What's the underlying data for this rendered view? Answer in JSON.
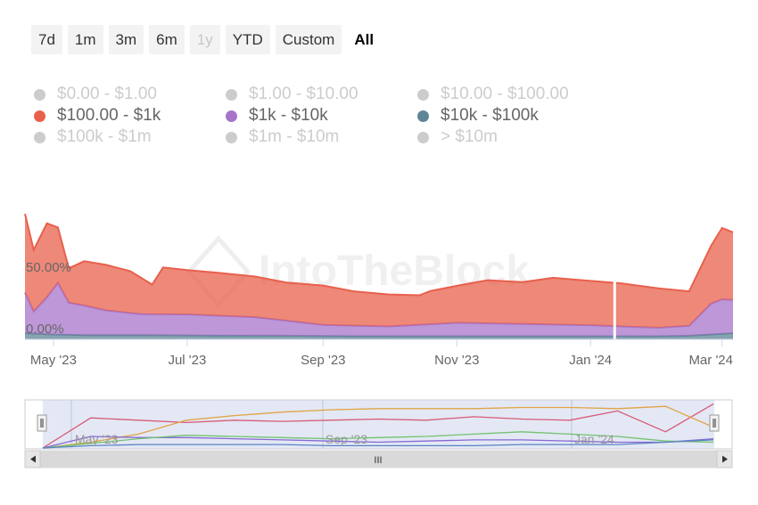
{
  "range_selector": {
    "buttons": [
      {
        "label": "7d",
        "state": "normal"
      },
      {
        "label": "1m",
        "state": "normal"
      },
      {
        "label": "3m",
        "state": "normal"
      },
      {
        "label": "6m",
        "state": "normal"
      },
      {
        "label": "1y",
        "state": "disabled"
      },
      {
        "label": "YTD",
        "state": "normal"
      },
      {
        "label": "Custom",
        "state": "normal"
      },
      {
        "label": "All",
        "state": "selected"
      }
    ]
  },
  "watermark": "IntoTheBlock",
  "colors": {
    "series_100_1k": "#e8604c",
    "series_1k_10k": "#a774c9",
    "series_10k_100k": "#5f8597",
    "hidden_series": "#cccccc",
    "navigator_fill": "#ccd6eb"
  },
  "chart_data": {
    "type": "area",
    "stacking": "normal",
    "legend": [
      {
        "name": "$0.00 - $1.00",
        "visible": false,
        "color": "#cccccc"
      },
      {
        "name": "$1.00 - $10.00",
        "visible": false,
        "color": "#cccccc"
      },
      {
        "name": "$10.00 - $100.00",
        "visible": false,
        "color": "#cccccc"
      },
      {
        "name": "$100.00 - $1k",
        "visible": true,
        "color": "#e8604c"
      },
      {
        "name": "$1k - $10k",
        "visible": true,
        "color": "#a774c9"
      },
      {
        "name": "$10k - $100k",
        "visible": true,
        "color": "#5f8597"
      },
      {
        "name": "$100k - $1m",
        "visible": false,
        "color": "#cccccc"
      },
      {
        "name": "$1m - $10m",
        "visible": false,
        "color": "#cccccc"
      },
      {
        "name": "> $10m",
        "visible": false,
        "color": "#cccccc"
      }
    ],
    "y_tick_labels": [
      "0.00%",
      "50.00%"
    ],
    "y_ticks": [
      0,
      50
    ],
    "ylim": [
      0,
      97
    ],
    "x_tick_labels": [
      "May '23",
      "Jul '23",
      "Sep '23",
      "Nov '23",
      "Jan '24",
      "Mar '24"
    ],
    "x_ticks": [
      "2023-05-01",
      "2023-07-01",
      "2023-09-01",
      "2023-11-01",
      "2024-01-01",
      "2024-03-01"
    ],
    "x_range": [
      "2023-04-18",
      "2024-03-06"
    ],
    "series": [
      {
        "name": "$10k - $100k",
        "color": "#5f8597",
        "x": [
          "2023-04-18",
          "2023-05-01",
          "2023-05-15",
          "2023-06-15",
          "2023-07-15",
          "2023-08-15",
          "2023-09-15",
          "2023-10-15",
          "2023-11-15",
          "2023-12-15",
          "2024-01-15",
          "2024-02-01",
          "2024-02-15",
          "2024-02-25",
          "2024-03-06"
        ],
        "values": [
          5,
          4,
          3.5,
          3.5,
          3,
          3,
          2.5,
          2.5,
          2.5,
          2.5,
          2.5,
          2.5,
          3,
          4,
          5
        ]
      },
      {
        "name": "$1k - $10k",
        "color": "#a774c9",
        "x": [
          "2023-04-18",
          "2023-04-22",
          "2023-04-28",
          "2023-05-03",
          "2023-05-08",
          "2023-05-15",
          "2023-05-25",
          "2023-06-10",
          "2023-07-01",
          "2023-08-01",
          "2023-09-01",
          "2023-10-01",
          "2023-11-01",
          "2023-12-01",
          "2024-01-01",
          "2024-01-15",
          "2024-02-01",
          "2024-02-15",
          "2024-02-25",
          "2024-03-01",
          "2024-03-06"
        ],
        "values": [
          33,
          18,
          30,
          42,
          26,
          24,
          20,
          17,
          17,
          15,
          9,
          8,
          11,
          10,
          9,
          8,
          7,
          8,
          25,
          28,
          27
        ]
      },
      {
        "name": "$100.00 - $1k",
        "color": "#e8604c",
        "x": [
          "2023-04-18",
          "2023-04-22",
          "2023-04-28",
          "2023-05-03",
          "2023-05-08",
          "2023-05-15",
          "2023-05-25",
          "2023-06-05",
          "2023-06-15",
          "2023-06-20",
          "2023-07-01",
          "2023-07-15",
          "2023-08-01",
          "2023-08-15",
          "2023-09-01",
          "2023-09-15",
          "2023-10-01",
          "2023-10-15",
          "2023-10-20",
          "2023-11-01",
          "2023-11-15",
          "2023-12-01",
          "2023-12-15",
          "2024-01-01",
          "2024-01-15",
          "2024-02-01",
          "2024-02-15",
          "2024-02-25",
          "2024-03-01",
          "2024-03-06"
        ],
        "values": [
          64,
          50,
          60,
          45,
          28,
          36,
          37,
          34,
          24,
          38,
          36,
          35,
          33,
          31,
          32,
          28,
          26,
          24,
          27,
          30,
          35,
          34,
          38,
          36,
          35,
          32,
          28,
          47,
          58,
          55
        ]
      }
    ]
  },
  "navigator": {
    "x_tick_labels": [
      "May '23",
      "Sep '23",
      "Jan '24"
    ],
    "scrollbar_grip": "III",
    "lines": [
      {
        "name": "$100.00 - $1k",
        "color": "#d85a78",
        "values": [
          0,
          26,
          24,
          22,
          24,
          23,
          24,
          25,
          24,
          27,
          25,
          24,
          32,
          14,
          38
        ]
      },
      {
        "name": "$10.00 - $100.00",
        "color": "#e2a345",
        "values": [
          0,
          5,
          12,
          24,
          28,
          31,
          33,
          34,
          34,
          34,
          35,
          35,
          34,
          36,
          18
        ]
      },
      {
        "name": "$1k - $10k",
        "color": "#8668d6",
        "values": [
          0,
          10,
          9,
          9,
          8,
          7,
          6,
          5,
          6,
          7,
          7,
          6,
          5,
          5,
          8
        ]
      },
      {
        "name": "$1.00 - $10.00",
        "color": "#72c26e",
        "values": [
          0,
          4,
          8,
          11,
          10,
          9,
          8,
          9,
          10,
          12,
          14,
          12,
          10,
          6,
          5
        ]
      },
      {
        "name": "$10k - $100k",
        "color": "#5b82c4",
        "values": [
          0,
          2,
          3,
          3,
          3,
          3,
          2,
          2,
          2,
          2,
          3,
          3,
          3,
          5,
          7
        ]
      }
    ]
  }
}
